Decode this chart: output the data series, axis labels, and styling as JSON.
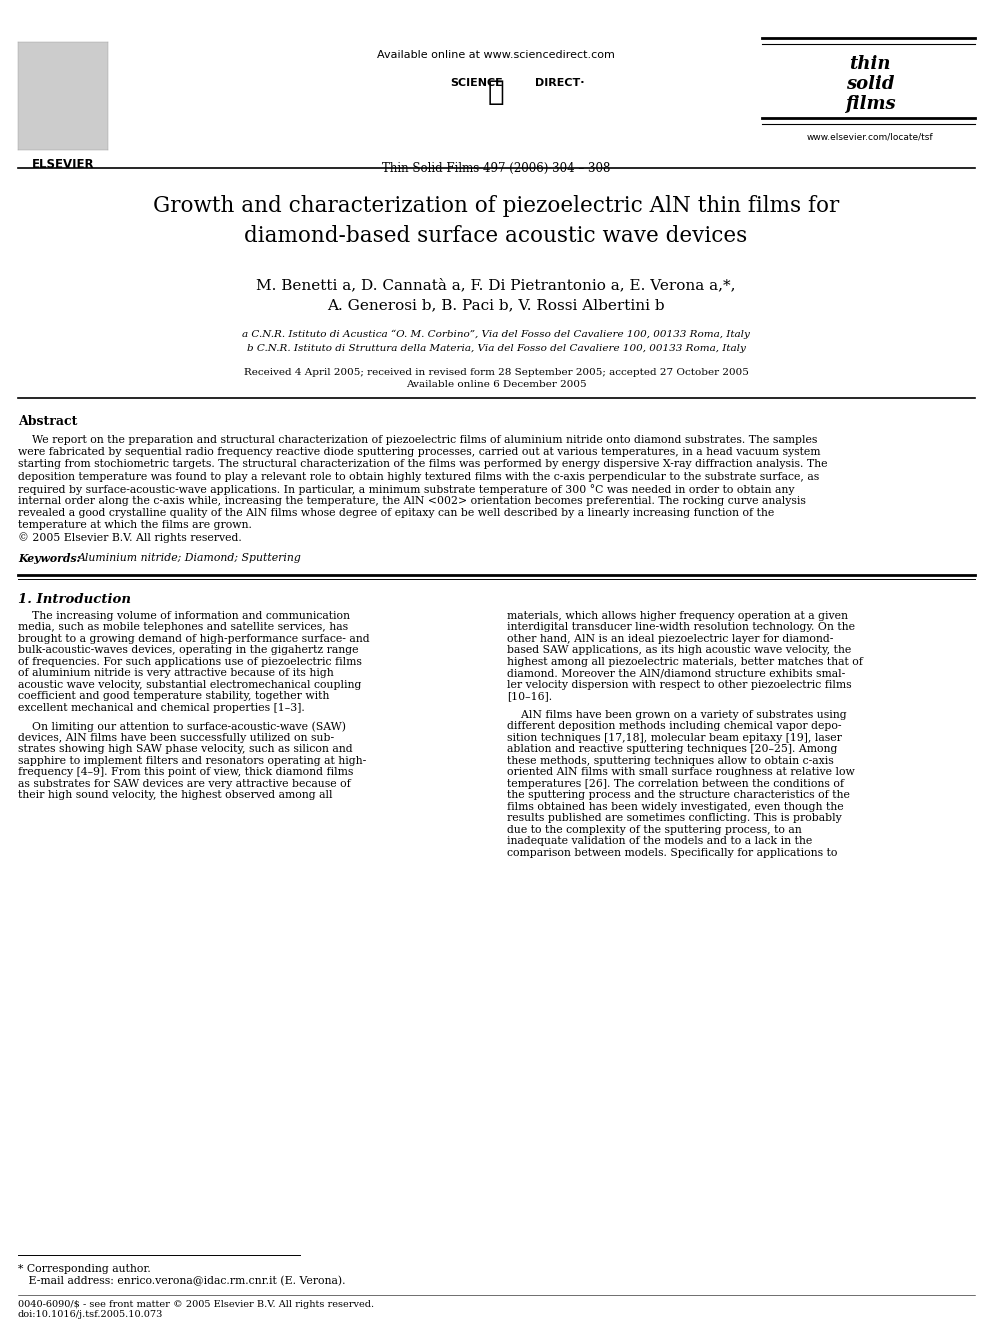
{
  "bg_color": "#ffffff",
  "page_width": 9.92,
  "page_height": 13.23,
  "dpi": 100,
  "header": {
    "available_online": "Available online at www.sciencedirect.com",
    "journal_ref": "Thin Solid Films 497 (2006) 304 – 308",
    "elsevier_text": "ELSEVIER",
    "website": "www.elsevier.com/locate/tsf"
  },
  "title_line1": "Growth and characterization of piezoelectric AlN thin films for",
  "title_line2": "diamond-based surface acoustic wave devices",
  "authors_line1": "M. Benetti a, D. Cannatà a, F. Di Pietrantonio a, E. Verona a,*,",
  "authors_line2": "A. Generosi b, B. Paci b, V. Rossi Albertini b",
  "affil_a": "a C.N.R. Istituto di Acustica “O. M. Corbino”, Via del Fosso del Cavaliere 100, 00133 Roma, Italy",
  "affil_b": "b C.N.R. Istituto di Struttura della Materia, Via del Fosso del Cavaliere 100, 00133 Roma, Italy",
  "received": "Received 4 April 2005; received in revised form 28 September 2005; accepted 27 October 2005",
  "available": "Available online 6 December 2005",
  "abstract_title": "Abstract",
  "abstract_lines": [
    "    We report on the preparation and structural characterization of piezoelectric films of aluminium nitride onto diamond substrates. The samples",
    "were fabricated by sequential radio frequency reactive diode sputtering processes, carried out at various temperatures, in a head vacuum system",
    "starting from stochiometric targets. The structural characterization of the films was performed by energy dispersive X-ray diffraction analysis. The",
    "deposition temperature was found to play a relevant role to obtain highly textured films with the c-axis perpendicular to the substrate surface, as",
    "required by surface-acoustic-wave applications. In particular, a minimum substrate temperature of 300 °C was needed in order to obtain any",
    "internal order along the c-axis while, increasing the temperature, the AlN <002> orientation becomes preferential. The rocking curve analysis",
    "revealed a good crystalline quality of the AlN films whose degree of epitaxy can be well described by a linearly increasing function of the",
    "temperature at which the films are grown.",
    "© 2005 Elsevier B.V. All rights reserved."
  ],
  "keywords_label": "Keywords: ",
  "keywords": "Aluminium nitride; Diamond; Sputtering",
  "section1_title": "1. Introduction",
  "col1_lines": [
    "    The increasing volume of information and communication",
    "media, such as mobile telephones and satellite services, has",
    "brought to a growing demand of high-performance surface- and",
    "bulk-acoustic-waves devices, operating in the gigahertz range",
    "of frequencies. For such applications use of piezoelectric films",
    "of aluminium nitride is very attractive because of its high",
    "acoustic wave velocity, substantial electromechanical coupling",
    "coefficient and good temperature stability, together with",
    "excellent mechanical and chemical properties [1–3].",
    "    On limiting our attention to surface-acoustic-wave (SAW)",
    "devices, AlN films have been successfully utilized on sub-",
    "strates showing high SAW phase velocity, such as silicon and",
    "sapphire to implement filters and resonators operating at high-",
    "frequency [4–9]. From this point of view, thick diamond films",
    "as substrates for SAW devices are very attractive because of",
    "their high sound velocity, the highest observed among all"
  ],
  "col2_lines": [
    "materials, which allows higher frequency operation at a given",
    "interdigital transducer line-width resolution technology. On the",
    "other hand, AlN is an ideal piezoelectric layer for diamond-",
    "based SAW applications, as its high acoustic wave velocity, the",
    "highest among all piezoelectric materials, better matches that of",
    "diamond. Moreover the AlN/diamond structure exhibits smal-",
    "ler velocity dispersion with respect to other piezoelectric films",
    "[10–16].",
    "    AlN films have been grown on a variety of substrates using",
    "different deposition methods including chemical vapor depo-",
    "sition techniques [17,18], molecular beam epitaxy [19], laser",
    "ablation and reactive sputtering techniques [20–25]. Among",
    "these methods, sputtering techniques allow to obtain c-axis",
    "oriented AlN films with small surface roughness at relative low",
    "temperatures [26]. The correlation between the conditions of",
    "the sputtering process and the structure characteristics of the",
    "films obtained has been widely investigated, even though the",
    "results published are sometimes conflicting. This is probably",
    "due to the complexity of the sputtering process, to an",
    "inadequate validation of the models and to a lack in the",
    "comparison between models. Specifically for applications to"
  ],
  "footnote_star": "* Corresponding author.",
  "footnote_email": "   E-mail address: enrico.verona@idac.rm.cnr.it (E. Verona).",
  "footer1": "0040-6090/$ - see front matter © 2005 Elsevier B.V. All rights reserved.",
  "footer2": "doi:10.1016/j.tsf.2005.10.073"
}
